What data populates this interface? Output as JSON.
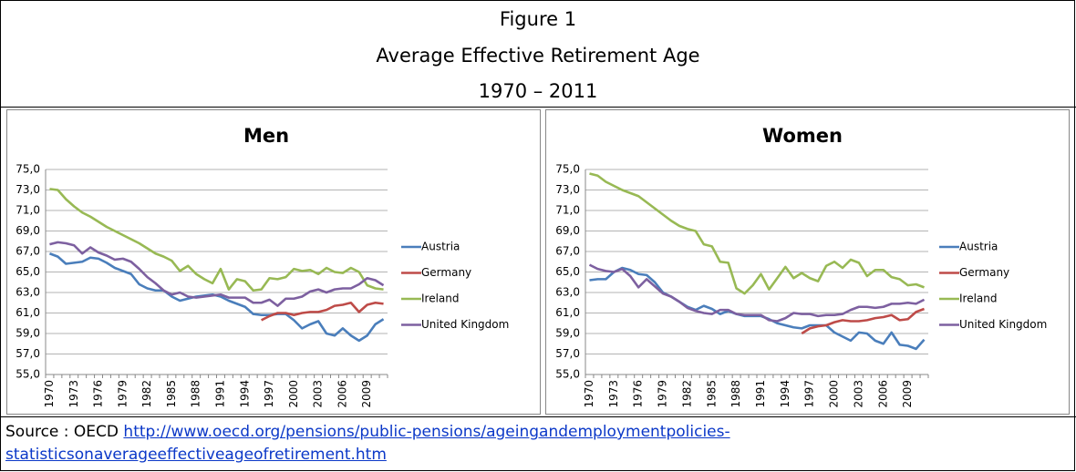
{
  "header": [
    "Figure 1",
    "Average Effective Retirement Age",
    "1970 – 2011"
  ],
  "source": {
    "prefix": "Source : OECD",
    "url": "http://www.oecd.org/pensions/public-pensions/ageingandemploymentpolicies-statisticsonaverageeffectiveageofretirement.htm"
  },
  "chart_data": [
    {
      "type": "line",
      "title": "Men",
      "categories": [
        "1970",
        null,
        null,
        "1973",
        null,
        null,
        "1976",
        null,
        null,
        "1979",
        null,
        null,
        "1982",
        null,
        null,
        "1985",
        null,
        null,
        "1988",
        null,
        null,
        "1991",
        null,
        null,
        "1994",
        null,
        null,
        "1997",
        null,
        null,
        "2000",
        null,
        null,
        "2003",
        null,
        null,
        "2006",
        null,
        null,
        "2009",
        null,
        null
      ],
      "ylim": [
        55,
        75
      ],
      "yticks": [
        {
          "value": 55,
          "label": "55,0"
        },
        {
          "value": 57,
          "label": "57,0"
        },
        {
          "value": 59,
          "label": "59,0"
        },
        {
          "value": 61,
          "label": "61,0"
        },
        {
          "value": 63,
          "label": "63,0"
        },
        {
          "value": 65,
          "label": "65,0"
        },
        {
          "value": 67,
          "label": "67,0"
        },
        {
          "value": 69,
          "label": "69,0"
        },
        {
          "value": 71,
          "label": "71,0"
        },
        {
          "value": 73,
          "label": "73,0"
        },
        {
          "value": 75,
          "label": "75,0"
        }
      ],
      "grid": true,
      "legend": "right",
      "series": [
        {
          "name": "Austria",
          "color": "#4a7ebb",
          "values": [
            66.8,
            66.5,
            65.8,
            65.9,
            66.0,
            66.4,
            66.3,
            65.9,
            65.4,
            65.1,
            64.8,
            63.8,
            63.4,
            63.2,
            63.2,
            62.6,
            62.2,
            62.4,
            62.6,
            62.7,
            62.8,
            62.6,
            62.2,
            61.9,
            61.6,
            60.9,
            60.8,
            60.8,
            60.9,
            60.9,
            60.3,
            59.5,
            59.9,
            60.2,
            59.0,
            58.8,
            59.5,
            58.8,
            58.3,
            58.8,
            59.9,
            60.4
          ]
        },
        {
          "name": "Germany",
          "color": "#be4b48",
          "values": [
            null,
            null,
            null,
            null,
            null,
            null,
            null,
            null,
            null,
            null,
            null,
            null,
            null,
            null,
            null,
            null,
            null,
            null,
            null,
            null,
            null,
            null,
            null,
            null,
            null,
            null,
            60.3,
            60.7,
            61.0,
            61.0,
            60.8,
            61.0,
            61.1,
            61.1,
            61.3,
            61.7,
            61.8,
            62.0,
            61.1,
            61.8,
            62.0,
            61.9
          ]
        },
        {
          "name": "Ireland",
          "color": "#98b954",
          "values": [
            73.1,
            73.0,
            72.1,
            71.4,
            70.8,
            70.4,
            69.9,
            69.4,
            69.0,
            68.6,
            68.2,
            67.8,
            67.3,
            66.8,
            66.5,
            66.1,
            65.1,
            65.6,
            64.8,
            64.3,
            63.9,
            65.3,
            63.3,
            64.3,
            64.1,
            63.2,
            63.3,
            64.4,
            64.3,
            64.5,
            65.3,
            65.1,
            65.2,
            64.8,
            65.4,
            65.0,
            64.9,
            65.4,
            65.0,
            63.7,
            63.4,
            63.3
          ]
        },
        {
          "name": "United Kingdom",
          "color": "#7d60a0",
          "values": [
            67.7,
            67.9,
            67.8,
            67.6,
            66.8,
            67.4,
            66.9,
            66.6,
            66.2,
            66.3,
            66.0,
            65.3,
            64.5,
            63.9,
            63.2,
            62.8,
            63.0,
            62.6,
            62.5,
            62.6,
            62.7,
            62.8,
            62.5,
            62.5,
            62.5,
            62.0,
            62.0,
            62.3,
            61.7,
            62.4,
            62.4,
            62.6,
            63.1,
            63.3,
            63.0,
            63.3,
            63.4,
            63.4,
            63.8,
            64.4,
            64.2,
            63.7
          ]
        }
      ]
    },
    {
      "type": "line",
      "title": "Women",
      "categories": [
        "1970",
        null,
        null,
        "1973",
        null,
        null,
        "1976",
        null,
        null,
        "1979",
        null,
        null,
        "1982",
        null,
        null,
        "1985",
        null,
        null,
        "1988",
        null,
        null,
        "1991",
        null,
        null,
        "1994",
        null,
        null,
        "1997",
        null,
        null,
        "2000",
        null,
        null,
        "2003",
        null,
        null,
        "2006",
        null,
        null,
        "2009",
        null,
        null
      ],
      "ylim": [
        55,
        75
      ],
      "yticks": [
        {
          "value": 55,
          "label": "55,0"
        },
        {
          "value": 57,
          "label": "57,0"
        },
        {
          "value": 59,
          "label": "59,0"
        },
        {
          "value": 61,
          "label": "61,0"
        },
        {
          "value": 63,
          "label": "63,0"
        },
        {
          "value": 65,
          "label": "65,0"
        },
        {
          "value": 67,
          "label": "67,0"
        },
        {
          "value": 69,
          "label": "69,0"
        },
        {
          "value": 71,
          "label": "71,0"
        },
        {
          "value": 73,
          "label": "73,0"
        },
        {
          "value": 75,
          "label": "75,0"
        }
      ],
      "grid": true,
      "legend": "right",
      "series": [
        {
          "name": "Austria",
          "color": "#4a7ebb",
          "values": [
            64.2,
            64.3,
            64.3,
            65.0,
            65.4,
            65.2,
            64.8,
            64.7,
            64.0,
            63.0,
            62.6,
            62.1,
            61.6,
            61.3,
            61.7,
            61.4,
            60.9,
            61.2,
            60.9,
            60.7,
            60.7,
            60.7,
            60.4,
            60.0,
            59.8,
            59.6,
            59.5,
            59.8,
            59.8,
            59.8,
            59.1,
            58.7,
            58.3,
            59.1,
            59.0,
            58.3,
            58.0,
            59.1,
            57.9,
            57.8,
            57.5,
            58.4
          ]
        },
        {
          "name": "Germany",
          "color": "#be4b48",
          "values": [
            null,
            null,
            null,
            null,
            null,
            null,
            null,
            null,
            null,
            null,
            null,
            null,
            null,
            null,
            null,
            null,
            null,
            null,
            null,
            null,
            null,
            null,
            null,
            null,
            null,
            null,
            59.0,
            59.5,
            59.7,
            59.8,
            60.1,
            60.3,
            60.2,
            60.2,
            60.3,
            60.5,
            60.6,
            60.8,
            60.3,
            60.4,
            61.1,
            61.4
          ]
        },
        {
          "name": "Ireland",
          "color": "#98b954",
          "values": [
            74.6,
            74.4,
            73.8,
            73.4,
            73.0,
            72.7,
            72.4,
            71.8,
            71.2,
            70.6,
            70.0,
            69.5,
            69.2,
            69.0,
            67.7,
            67.5,
            66.0,
            65.9,
            63.4,
            62.9,
            63.7,
            64.8,
            63.3,
            64.4,
            65.5,
            64.4,
            64.9,
            64.4,
            64.1,
            65.6,
            66.0,
            65.4,
            66.2,
            65.9,
            64.6,
            65.2,
            65.2,
            64.5,
            64.3,
            63.7,
            63.8,
            63.5
          ]
        },
        {
          "name": "United Kingdom",
          "color": "#7d60a0",
          "values": [
            65.7,
            65.3,
            65.1,
            65.0,
            65.3,
            64.6,
            63.5,
            64.3,
            63.6,
            62.9,
            62.6,
            62.1,
            61.5,
            61.2,
            61.0,
            60.9,
            61.3,
            61.3,
            60.9,
            60.8,
            60.8,
            60.8,
            60.3,
            60.2,
            60.5,
            61.0,
            60.9,
            60.9,
            60.7,
            60.8,
            60.8,
            60.9,
            61.3,
            61.6,
            61.6,
            61.5,
            61.6,
            61.9,
            61.9,
            62.0,
            61.9,
            62.3
          ]
        }
      ]
    }
  ]
}
